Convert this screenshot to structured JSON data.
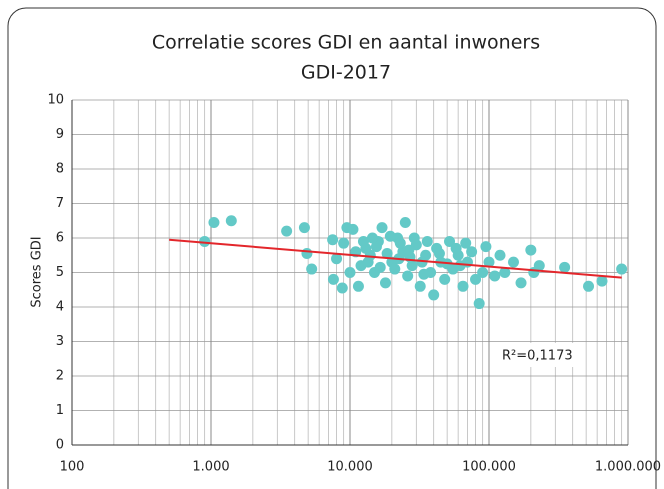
{
  "chart_data": {
    "type": "scatter",
    "title": "Correlatie scores GDI en aantal inwoners",
    "subtitle": "GDI-2017",
    "y_label": "Scores GDI",
    "annotation": "R²=0,1173",
    "color": "#63c9c7",
    "log_x": true,
    "grid": true,
    "xlim": [
      100,
      1000000
    ],
    "ylim": [
      0,
      10
    ],
    "xticks": [
      100,
      {
        "value": 1000,
        "label": "1.000"
      },
      {
        "value": 10000,
        "label": "10.000"
      },
      {
        "value": 100000,
        "label": "100.000"
      },
      {
        "value": 1000000,
        "label": "1.000.000"
      }
    ],
    "yticks": [
      0,
      1,
      2,
      3,
      4,
      5,
      6,
      7,
      8,
      9,
      10
    ],
    "x": [
      900,
      1050,
      1400,
      3500,
      4700,
      4900,
      5300,
      7500,
      8000,
      7600,
      8800,
      9500,
      10500,
      9000,
      11500,
      12000,
      13000,
      15000,
      17000,
      14000,
      16000,
      18000,
      20000,
      22000,
      24000,
      25000,
      26000,
      28000,
      30000,
      32000,
      35000,
      38000,
      40000,
      42000,
      45000,
      48000,
      52000,
      55000,
      60000,
      65000,
      70000,
      75000,
      80000,
      85000,
      90000,
      95000,
      100000,
      110000,
      120000,
      130000,
      150000,
      170000,
      200000,
      210000,
      230000,
      350000,
      520000,
      650000,
      900000,
      11000,
      12500,
      13500,
      15500,
      18500,
      21000,
      23000,
      27000,
      29000,
      33000,
      36000,
      44000,
      50000,
      58000,
      62000,
      68000,
      16500,
      19500,
      34000,
      26500,
      10000,
      14500,
      22500
    ],
    "y": [
      5.9,
      6.45,
      6.5,
      6.2,
      6.3,
      5.55,
      5.1,
      5.95,
      5.4,
      4.8,
      4.55,
      6.3,
      6.25,
      5.85,
      4.6,
      5.2,
      5.7,
      5.0,
      6.3,
      5.5,
      5.9,
      4.7,
      5.3,
      6.0,
      5.6,
      6.45,
      4.9,
      5.2,
      5.8,
      4.6,
      5.5,
      5.0,
      4.35,
      5.7,
      5.3,
      4.8,
      5.9,
      5.1,
      5.5,
      4.6,
      5.3,
      5.6,
      4.8,
      4.1,
      5.0,
      5.75,
      5.3,
      4.9,
      5.5,
      5.0,
      5.3,
      4.7,
      5.65,
      5.0,
      5.2,
      5.15,
      4.6,
      4.75,
      5.1,
      5.6,
      5.9,
      5.3,
      5.75,
      5.55,
      5.1,
      5.85,
      5.45,
      6.0,
      5.3,
      5.9,
      5.55,
      5.25,
      5.7,
      5.2,
      5.85,
      5.15,
      6.05,
      4.95,
      5.65,
      5.0,
      6.0,
      5.4
    ],
    "trendline": {
      "color": "#e3262b",
      "x": [
        500,
        900000
      ],
      "y": [
        5.95,
        4.85
      ]
    }
  }
}
